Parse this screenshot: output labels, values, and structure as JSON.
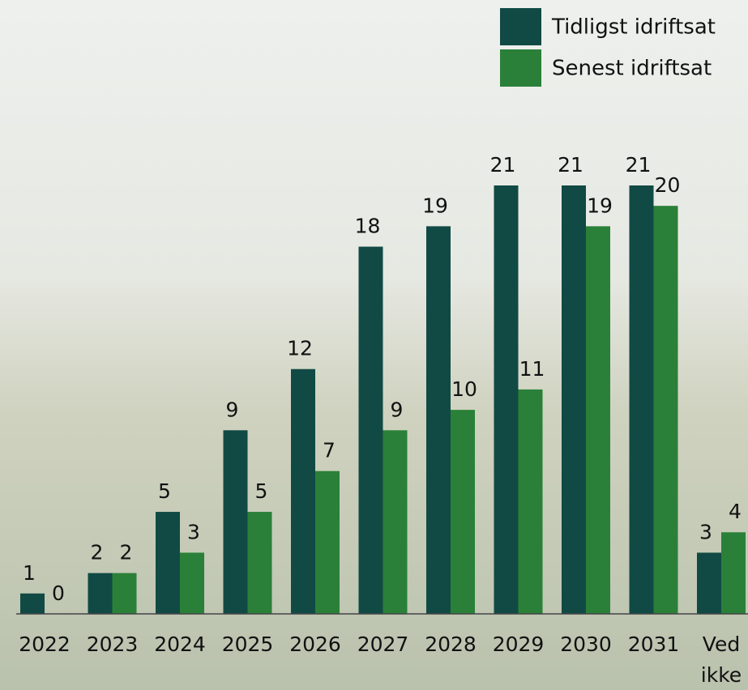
{
  "chart_data": {
    "type": "bar",
    "categories": [
      "2022",
      "2023",
      "2024",
      "2025",
      "2026",
      "2027",
      "2028",
      "2029",
      "2030",
      "2031",
      "Ved ikke"
    ],
    "series": [
      {
        "name": "Tidligst idriftsat",
        "color": "#114a44",
        "values": [
          1,
          2,
          5,
          9,
          12,
          18,
          19,
          21,
          21,
          21,
          3
        ]
      },
      {
        "name": "Senest idriftsat",
        "color": "#2a8038",
        "values": [
          0,
          2,
          3,
          5,
          7,
          9,
          10,
          11,
          19,
          20,
          4
        ]
      }
    ],
    "legend": "top-right"
  }
}
